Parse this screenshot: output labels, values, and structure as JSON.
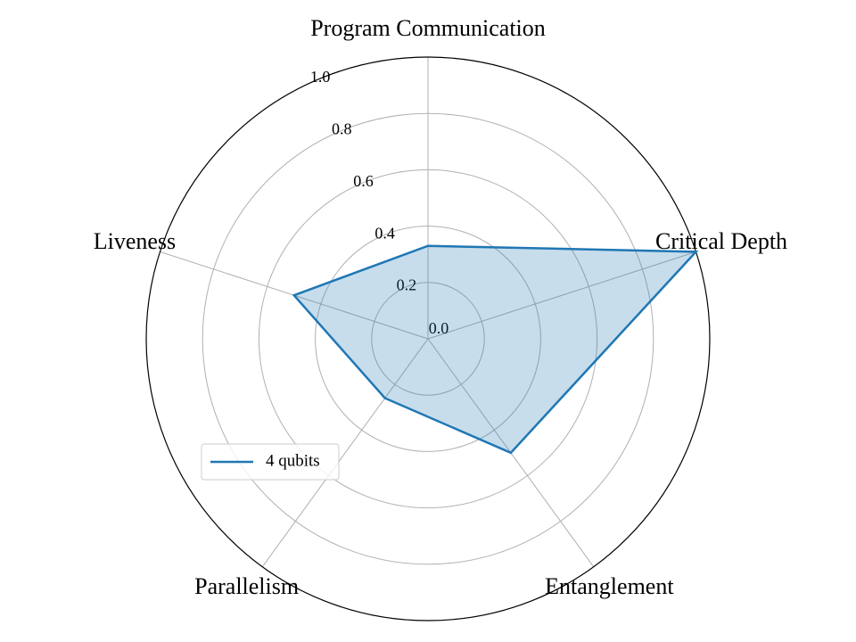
{
  "chart_data": {
    "type": "radar",
    "categories": [
      "Program Communication",
      "Critical Depth",
      "Entanglement",
      "Parallelism",
      "Liveness"
    ],
    "series": [
      {
        "name": "4 qubits",
        "color": "#1f77b4",
        "values": [
          0.33,
          1.0,
          0.5,
          0.26,
          0.5
        ]
      }
    ],
    "ylim": [
      0,
      1
    ],
    "yticks": [
      {
        "value": 0,
        "label": "0.0"
      },
      0.2,
      0.4,
      0.6,
      0.8,
      {
        "value": 1,
        "label": "1.0"
      }
    ],
    "grid": true,
    "legend": "lower left"
  }
}
